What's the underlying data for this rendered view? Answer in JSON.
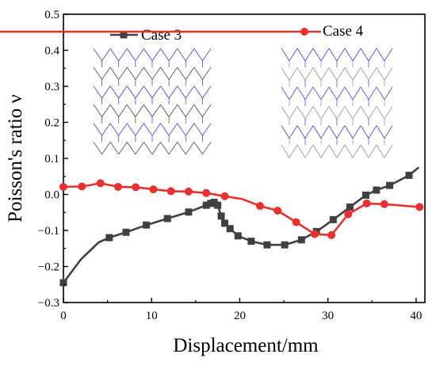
{
  "chart_data": {
    "type": "line",
    "xlabel": "Displacement/mm",
    "ylabel": "Poisson's ratio ν",
    "xlim": [
      0,
      41
    ],
    "ylim": [
      -0.3,
      0.5
    ],
    "x_ticks": [
      0,
      10,
      20,
      30,
      40
    ],
    "x_tick_labels": [
      "0",
      "10",
      "20",
      "30",
      "40"
    ],
    "y_ticks": [
      -0.3,
      -0.2,
      -0.1,
      0.0,
      0.1,
      0.2,
      0.3,
      0.4,
      0.5
    ],
    "y_tick_labels": [
      "−0.3",
      "−0.2",
      "−0.1",
      "0.0",
      "0.1",
      "0.2",
      "0.3",
      "0.4",
      "0.5"
    ],
    "grid": false,
    "legend_placement": "top",
    "series": [
      {
        "name": "Case 3",
        "color": "#404040",
        "marker": "square",
        "line_points": [
          [
            0,
            -0.245
          ],
          [
            2,
            -0.18
          ],
          [
            4,
            -0.133
          ],
          [
            5.2,
            -0.12
          ],
          [
            7.1,
            -0.105
          ],
          [
            9.4,
            -0.085
          ],
          [
            11.8,
            -0.067
          ],
          [
            14.2,
            -0.049
          ],
          [
            16.2,
            -0.03
          ],
          [
            16.7,
            -0.025
          ],
          [
            17.1,
            -0.022
          ],
          [
            17.5,
            -0.03
          ],
          [
            17.9,
            -0.06
          ],
          [
            18.3,
            -0.08
          ],
          [
            18.9,
            -0.095
          ],
          [
            19.8,
            -0.115
          ],
          [
            21.3,
            -0.13
          ],
          [
            23.1,
            -0.14
          ],
          [
            25.1,
            -0.14
          ],
          [
            27.0,
            -0.126
          ],
          [
            28.7,
            -0.103
          ],
          [
            30.6,
            -0.07
          ],
          [
            32.5,
            -0.035
          ],
          [
            34.3,
            -0.002
          ],
          [
            35.5,
            0.012
          ],
          [
            37.0,
            0.025
          ],
          [
            39.2,
            0.053
          ],
          [
            40.3,
            0.075
          ]
        ],
        "marker_points": [
          [
            0,
            -0.245
          ],
          [
            5.2,
            -0.12
          ],
          [
            7.1,
            -0.105
          ],
          [
            9.4,
            -0.085
          ],
          [
            11.8,
            -0.067
          ],
          [
            14.2,
            -0.049
          ],
          [
            16.2,
            -0.03
          ],
          [
            16.7,
            -0.025
          ],
          [
            17.1,
            -0.022
          ],
          [
            17.5,
            -0.03
          ],
          [
            17.9,
            -0.06
          ],
          [
            18.3,
            -0.08
          ],
          [
            18.9,
            -0.095
          ],
          [
            19.8,
            -0.115
          ],
          [
            21.3,
            -0.13
          ],
          [
            23.1,
            -0.14
          ],
          [
            25.1,
            -0.14
          ],
          [
            27.0,
            -0.126
          ],
          [
            28.7,
            -0.103
          ],
          [
            30.6,
            -0.07
          ],
          [
            32.5,
            -0.035
          ],
          [
            34.3,
            -0.002
          ],
          [
            35.5,
            0.012
          ],
          [
            37.0,
            0.025
          ],
          [
            39.2,
            0.053
          ]
        ]
      },
      {
        "name": "Case 4",
        "color": "#e8312f",
        "marker": "circle",
        "line_points": [
          [
            0,
            0.021
          ],
          [
            2.1,
            0.022
          ],
          [
            4.2,
            0.031
          ],
          [
            6.2,
            0.021
          ],
          [
            8.2,
            0.02
          ],
          [
            10.2,
            0.014
          ],
          [
            12.2,
            0.009
          ],
          [
            14.2,
            0.008
          ],
          [
            16.2,
            0.004
          ],
          [
            18.3,
            -0.005
          ],
          [
            20.3,
            -0.013
          ],
          [
            22.3,
            -0.032
          ],
          [
            24.3,
            -0.045
          ],
          [
            26.4,
            -0.077
          ],
          [
            28.5,
            -0.11
          ],
          [
            30.4,
            -0.113
          ],
          [
            32.3,
            -0.055
          ],
          [
            34.4,
            -0.025
          ],
          [
            36.4,
            -0.027
          ],
          [
            40.4,
            -0.035
          ]
        ],
        "marker_points": [
          [
            0,
            0.021
          ],
          [
            2.1,
            0.022
          ],
          [
            4.2,
            0.031
          ],
          [
            6.2,
            0.021
          ],
          [
            8.2,
            0.02
          ],
          [
            10.2,
            0.014
          ],
          [
            12.2,
            0.009
          ],
          [
            14.2,
            0.008
          ],
          [
            16.2,
            0.004
          ],
          [
            18.3,
            -0.005
          ],
          [
            22.3,
            -0.032
          ],
          [
            24.3,
            -0.045
          ],
          [
            26.4,
            -0.077
          ],
          [
            28.5,
            -0.11
          ],
          [
            30.4,
            -0.113
          ],
          [
            32.3,
            -0.055
          ],
          [
            34.4,
            -0.025
          ],
          [
            36.4,
            -0.027
          ],
          [
            40.4,
            -0.035
          ]
        ]
      }
    ],
    "insets": [
      {
        "depicts": "Case 3 lattice structure",
        "colors": [
          "#4a4ee0",
          "#555555"
        ]
      },
      {
        "depicts": "Case 4 lattice structure",
        "colors": [
          "#4a4ee0",
          "#9a9a9a"
        ]
      }
    ]
  }
}
